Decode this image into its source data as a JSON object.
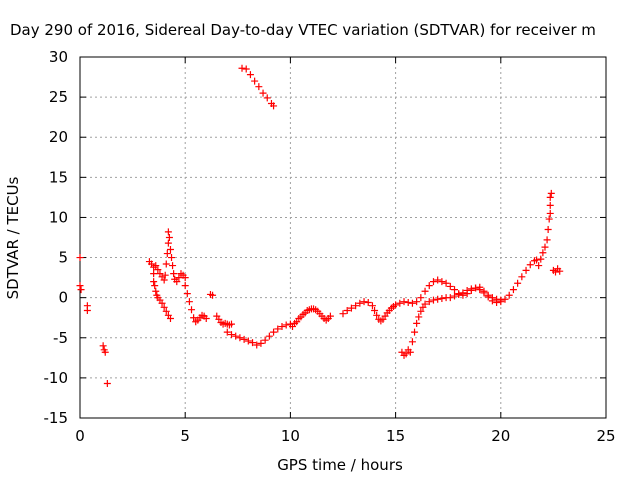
{
  "chart_data": {
    "type": "scatter",
    "title": "Day 290 of 2016, Sidereal Day-to-day VTEC variation (SDTVAR) for receiver m",
    "xlabel": "GPS time / hours",
    "ylabel": "SDTVAR / TECUs",
    "xlim": [
      0,
      25
    ],
    "ylim": [
      -15,
      30
    ],
    "xticks": [
      0,
      5,
      10,
      15,
      20,
      25
    ],
    "yticks": [
      -15,
      -10,
      -5,
      0,
      5,
      10,
      15,
      20,
      25,
      30
    ],
    "grid": true,
    "marker": "+",
    "color": "#ff0000",
    "series": [
      {
        "values": [
          [
            0.0,
            5.0
          ],
          [
            0.0,
            1.5
          ],
          [
            0.05,
            1.0
          ],
          [
            0.35,
            -1.0
          ],
          [
            0.35,
            -1.6
          ],
          [
            1.1,
            -6.0
          ],
          [
            1.15,
            -6.5
          ],
          [
            1.2,
            -6.8
          ],
          [
            1.3,
            -10.7
          ],
          [
            3.3,
            4.5
          ],
          [
            3.4,
            4.2
          ],
          [
            3.5,
            3.8
          ],
          [
            3.5,
            3.0
          ],
          [
            3.5,
            2.0
          ],
          [
            3.55,
            1.5
          ],
          [
            3.6,
            0.8
          ],
          [
            3.65,
            0.3
          ],
          [
            3.7,
            0.0
          ],
          [
            3.8,
            -0.3
          ],
          [
            3.9,
            -0.7
          ],
          [
            4.0,
            -1.2
          ],
          [
            4.1,
            -1.7
          ],
          [
            4.2,
            -2.2
          ],
          [
            4.3,
            -2.6
          ],
          [
            3.6,
            4.0
          ],
          [
            3.7,
            3.5
          ],
          [
            3.8,
            3.0
          ],
          [
            3.9,
            2.6
          ],
          [
            4.0,
            2.2
          ],
          [
            4.05,
            2.8
          ],
          [
            4.1,
            4.2
          ],
          [
            4.15,
            5.5
          ],
          [
            4.2,
            6.8
          ],
          [
            4.2,
            8.2
          ],
          [
            4.25,
            7.5
          ],
          [
            4.3,
            6.0
          ],
          [
            4.35,
            5.0
          ],
          [
            4.4,
            4.0
          ],
          [
            4.45,
            3.0
          ],
          [
            4.5,
            2.3
          ],
          [
            4.6,
            2.0
          ],
          [
            4.7,
            2.5
          ],
          [
            4.8,
            3.0
          ],
          [
            4.9,
            2.8
          ],
          [
            5.0,
            2.5
          ],
          [
            5.0,
            1.5
          ],
          [
            5.1,
            0.5
          ],
          [
            5.2,
            -0.5
          ],
          [
            5.3,
            -1.5
          ],
          [
            5.4,
            -2.5
          ],
          [
            5.5,
            -3.0
          ],
          [
            5.6,
            -2.8
          ],
          [
            5.7,
            -2.5
          ],
          [
            5.8,
            -2.2
          ],
          [
            5.9,
            -2.3
          ],
          [
            6.0,
            -2.6
          ],
          [
            6.2,
            0.4
          ],
          [
            6.3,
            0.3
          ],
          [
            6.5,
            -2.3
          ],
          [
            6.6,
            -2.7
          ],
          [
            6.7,
            -3.1
          ],
          [
            6.8,
            -3.3
          ],
          [
            6.9,
            -3.2
          ],
          [
            7.0,
            -3.3
          ],
          [
            7.1,
            -3.4
          ],
          [
            7.2,
            -3.3
          ],
          [
            7.0,
            -4.3
          ],
          [
            7.2,
            -4.6
          ],
          [
            7.4,
            -4.8
          ],
          [
            7.6,
            -5.0
          ],
          [
            7.8,
            -5.2
          ],
          [
            8.0,
            -5.4
          ],
          [
            8.2,
            -5.6
          ],
          [
            8.4,
            -5.9
          ],
          [
            8.6,
            -5.7
          ],
          [
            8.8,
            -5.3
          ],
          [
            9.0,
            -4.8
          ],
          [
            9.2,
            -4.3
          ],
          [
            9.4,
            -3.9
          ],
          [
            9.6,
            -3.6
          ],
          [
            9.8,
            -3.4
          ],
          [
            10.0,
            -3.3
          ],
          [
            10.1,
            -3.6
          ],
          [
            10.2,
            -3.2
          ],
          [
            10.3,
            -3.0
          ],
          [
            10.4,
            -2.6
          ],
          [
            10.5,
            -2.4
          ],
          [
            10.6,
            -2.1
          ],
          [
            10.7,
            -1.9
          ],
          [
            10.8,
            -1.6
          ],
          [
            10.9,
            -1.5
          ],
          [
            11.0,
            -1.4
          ],
          [
            11.1,
            -1.4
          ],
          [
            11.2,
            -1.5
          ],
          [
            11.3,
            -1.7
          ],
          [
            11.4,
            -2.0
          ],
          [
            11.5,
            -2.3
          ],
          [
            11.6,
            -2.6
          ],
          [
            11.7,
            -2.8
          ],
          [
            11.8,
            -2.6
          ],
          [
            11.9,
            -2.3
          ],
          [
            12.5,
            -2.0
          ],
          [
            12.7,
            -1.6
          ],
          [
            12.9,
            -1.3
          ],
          [
            13.1,
            -1.0
          ],
          [
            13.3,
            -0.7
          ],
          [
            13.5,
            -0.5
          ],
          [
            13.7,
            -0.6
          ],
          [
            13.9,
            -1.0
          ],
          [
            14.0,
            -1.6
          ],
          [
            14.1,
            -2.2
          ],
          [
            14.2,
            -2.7
          ],
          [
            14.3,
            -2.9
          ],
          [
            14.4,
            -2.7
          ],
          [
            14.5,
            -2.3
          ],
          [
            14.6,
            -1.9
          ],
          [
            14.7,
            -1.6
          ],
          [
            14.8,
            -1.3
          ],
          [
            14.9,
            -1.1
          ],
          [
            15.0,
            -0.9
          ],
          [
            15.2,
            -0.7
          ],
          [
            15.4,
            -0.5
          ],
          [
            15.6,
            -0.6
          ],
          [
            15.8,
            -0.7
          ],
          [
            16.0,
            -0.5
          ],
          [
            16.2,
            0.0
          ],
          [
            16.4,
            0.8
          ],
          [
            16.6,
            1.5
          ],
          [
            16.8,
            2.0
          ],
          [
            17.0,
            2.2
          ],
          [
            17.2,
            2.0
          ],
          [
            17.4,
            1.8
          ],
          [
            17.6,
            1.4
          ],
          [
            17.8,
            1.0
          ],
          [
            18.0,
            0.5
          ],
          [
            18.2,
            0.3
          ],
          [
            18.4,
            0.5
          ],
          [
            18.6,
            0.9
          ],
          [
            18.8,
            1.2
          ],
          [
            19.0,
            1.3
          ],
          [
            19.2,
            0.8
          ],
          [
            19.4,
            0.3
          ],
          [
            19.6,
            0.0
          ],
          [
            19.8,
            -0.2
          ],
          [
            20.0,
            -0.3
          ],
          [
            15.3,
            -6.8
          ],
          [
            15.4,
            -7.2
          ],
          [
            15.5,
            -7.0
          ],
          [
            15.6,
            -6.5
          ],
          [
            15.7,
            -6.8
          ],
          [
            15.8,
            -5.5
          ],
          [
            15.9,
            -4.3
          ],
          [
            16.0,
            -3.2
          ],
          [
            16.1,
            -2.4
          ],
          [
            16.2,
            -1.7
          ],
          [
            16.3,
            -1.2
          ],
          [
            16.4,
            -0.8
          ],
          [
            16.6,
            -0.5
          ],
          [
            16.8,
            -0.3
          ],
          [
            17.0,
            -0.2
          ],
          [
            17.2,
            -0.1
          ],
          [
            17.4,
            0.0
          ],
          [
            17.6,
            0.0
          ],
          [
            17.8,
            0.2
          ],
          [
            18.0,
            0.4
          ],
          [
            18.2,
            0.6
          ],
          [
            18.4,
            0.9
          ],
          [
            18.6,
            1.1
          ],
          [
            18.8,
            1.2
          ],
          [
            19.0,
            1.0
          ],
          [
            19.2,
            0.6
          ],
          [
            19.4,
            0.1
          ],
          [
            19.6,
            -0.4
          ],
          [
            19.8,
            -0.6
          ],
          [
            20.0,
            -0.5
          ],
          [
            20.2,
            -0.2
          ],
          [
            20.4,
            0.3
          ],
          [
            20.6,
            1.0
          ],
          [
            20.8,
            1.8
          ],
          [
            21.0,
            2.6
          ],
          [
            21.2,
            3.4
          ],
          [
            21.4,
            4.1
          ],
          [
            21.6,
            4.6
          ],
          [
            21.7,
            4.7
          ],
          [
            21.8,
            4.0
          ],
          [
            21.9,
            4.8
          ],
          [
            22.0,
            5.6
          ],
          [
            22.1,
            6.3
          ],
          [
            22.2,
            7.2
          ],
          [
            22.25,
            8.5
          ],
          [
            22.3,
            9.8
          ],
          [
            22.35,
            10.5
          ],
          [
            22.35,
            11.5
          ],
          [
            22.35,
            12.5
          ],
          [
            22.4,
            13.0
          ],
          [
            22.5,
            3.4
          ],
          [
            22.6,
            3.2
          ],
          [
            22.7,
            3.6
          ],
          [
            22.8,
            3.3
          ],
          [
            7.7,
            28.6
          ],
          [
            7.9,
            28.5
          ],
          [
            8.1,
            27.8
          ],
          [
            8.3,
            27.0
          ],
          [
            8.5,
            26.3
          ],
          [
            8.7,
            25.5
          ],
          [
            8.9,
            24.9
          ],
          [
            9.1,
            24.2
          ],
          [
            9.2,
            23.9
          ]
        ]
      }
    ]
  }
}
